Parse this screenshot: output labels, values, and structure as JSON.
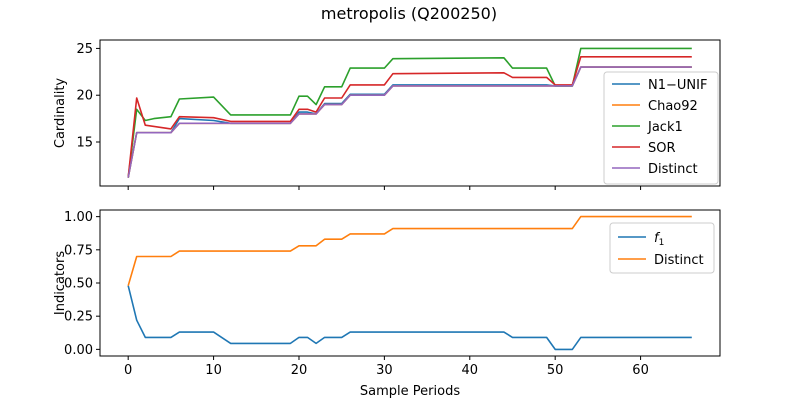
{
  "title": "metropolis (Q200250)",
  "chart_data": [
    {
      "type": "line",
      "xlabel": "",
      "ylabel": "Cardinality",
      "xlim": [
        -3.3,
        69.3
      ],
      "ylim": [
        10.3,
        25.9
      ],
      "xticks": [
        0,
        10,
        20,
        30,
        40,
        50,
        60
      ],
      "yticks": [
        15,
        20,
        25
      ],
      "ytick_labels": [
        "15",
        "20",
        "25"
      ],
      "legend_position": "right",
      "series": [
        {
          "name": "N1−UNIF",
          "color": "#1f77b4",
          "x": [
            0,
            1,
            2,
            5,
            6,
            10,
            12,
            19,
            20,
            21,
            22,
            23,
            25,
            26,
            30,
            31,
            44,
            45,
            49,
            50,
            52,
            53,
            66
          ],
          "y": [
            11.2,
            16,
            16,
            16,
            17.5,
            17.3,
            17,
            17,
            18.2,
            18.2,
            18,
            19.1,
            19.1,
            20.1,
            20.1,
            21.1,
            21.1,
            21.1,
            21.1,
            21,
            21,
            23,
            23
          ]
        },
        {
          "name": "Chao92",
          "color": "#ff7f0e",
          "x": [
            0,
            1,
            2,
            5,
            6,
            10,
            12,
            19,
            20,
            21,
            22,
            23,
            25,
            26,
            30,
            31,
            44,
            45,
            49,
            50,
            52,
            53,
            66
          ],
          "y": [
            11.2,
            16,
            16,
            16,
            17,
            17,
            17,
            17,
            18,
            18,
            18,
            19,
            19,
            20,
            20,
            21,
            21,
            21,
            21,
            21,
            21,
            23,
            23
          ]
        },
        {
          "name": "Jack1",
          "color": "#2ca02c",
          "x": [
            0,
            1,
            2,
            3,
            5,
            6,
            10,
            12,
            19,
            20,
            21,
            22,
            23,
            25,
            26,
            30,
            31,
            44,
            45,
            49,
            50,
            52,
            53,
            66
          ],
          "y": [
            11.2,
            18.5,
            17.3,
            17.5,
            17.7,
            19.6,
            19.8,
            17.9,
            17.9,
            19.9,
            19.9,
            19,
            20.9,
            20.9,
            22.9,
            22.9,
            23.9,
            24,
            22.9,
            22.9,
            21,
            21,
            25,
            25
          ]
        },
        {
          "name": "SOR",
          "color": "#d62728",
          "x": [
            0,
            1,
            2,
            5,
            6,
            10,
            12,
            19,
            20,
            21,
            22,
            23,
            25,
            26,
            30,
            31,
            44,
            45,
            49,
            50,
            52,
            53,
            66
          ],
          "y": [
            11.2,
            19.7,
            16.8,
            16.4,
            17.7,
            17.6,
            17.2,
            17.2,
            18.5,
            18.5,
            18.2,
            19.7,
            19.7,
            21.1,
            21.1,
            22.3,
            22.4,
            21.9,
            21.9,
            21.1,
            21.1,
            24.1,
            24.1
          ]
        },
        {
          "name": "Distinct",
          "color": "#9467bd",
          "x": [
            0,
            1,
            2,
            5,
            6,
            10,
            12,
            19,
            20,
            21,
            22,
            23,
            25,
            26,
            30,
            31,
            44,
            45,
            49,
            50,
            52,
            53,
            66
          ],
          "y": [
            11.2,
            16,
            16,
            16,
            17,
            17,
            17,
            17,
            18,
            18,
            18,
            19,
            19,
            20,
            20,
            21,
            21,
            21,
            21,
            21,
            21,
            23,
            23
          ]
        }
      ]
    },
    {
      "type": "line",
      "xlabel": "Sample Periods",
      "ylabel": "Indicators",
      "xlim": [
        -3.3,
        69.3
      ],
      "ylim": [
        -0.05,
        1.05
      ],
      "xticks": [
        0,
        10,
        20,
        30,
        40,
        50,
        60
      ],
      "xtick_labels": [
        "0",
        "10",
        "20",
        "30",
        "40",
        "50",
        "60"
      ],
      "yticks": [
        0,
        0.25,
        0.5,
        0.75,
        1.0
      ],
      "ytick_labels": [
        "0.00",
        "0.25",
        "0.50",
        "0.75",
        "1.00"
      ],
      "legend_position": "top-right",
      "series": [
        {
          "name": "f",
          "subscript": "1",
          "color": "#1f77b4",
          "x": [
            0,
            1,
            2,
            5,
            6,
            10,
            12,
            19,
            20,
            21,
            22,
            23,
            25,
            26,
            30,
            31,
            44,
            45,
            49,
            50,
            52,
            53,
            66
          ],
          "y": [
            0.48,
            0.22,
            0.09,
            0.09,
            0.13,
            0.13,
            0.045,
            0.045,
            0.09,
            0.09,
            0.045,
            0.09,
            0.09,
            0.13,
            0.13,
            0.13,
            0.13,
            0.09,
            0.09,
            0,
            0,
            0.09,
            0.09
          ]
        },
        {
          "name": "Distinct",
          "color": "#ff7f0e",
          "x": [
            0,
            1,
            2,
            5,
            6,
            10,
            12,
            19,
            20,
            21,
            22,
            23,
            25,
            26,
            30,
            31,
            44,
            45,
            49,
            50,
            52,
            53,
            66
          ],
          "y": [
            0.48,
            0.7,
            0.7,
            0.7,
            0.74,
            0.74,
            0.74,
            0.74,
            0.78,
            0.78,
            0.78,
            0.83,
            0.83,
            0.87,
            0.87,
            0.91,
            0.91,
            0.91,
            0.91,
            0.91,
            0.91,
            1,
            1
          ]
        }
      ]
    }
  ]
}
